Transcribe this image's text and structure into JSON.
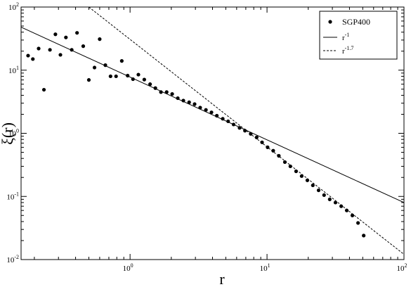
{
  "chart_data": {
    "type": "scatter",
    "title": "",
    "xlabel": "r",
    "ylabel": "ξ(r)",
    "xscale": "log",
    "yscale": "log",
    "xlim": [
      0.16,
      100
    ],
    "ylim": [
      0.01,
      100
    ],
    "grid": false,
    "legend_position": "top-right",
    "x_ticks": [
      {
        "base": "10",
        "exp": "0"
      },
      {
        "base": "10",
        "exp": "1"
      },
      {
        "base": "10",
        "exp": "2"
      }
    ],
    "y_ticks": [
      {
        "base": "10",
        "exp": "-2"
      },
      {
        "base": "10",
        "exp": "-1"
      },
      {
        "base": "10",
        "exp": "0"
      },
      {
        "base": "10",
        "exp": "1"
      },
      {
        "base": "10",
        "exp": "2"
      }
    ],
    "series": [
      {
        "name": "SGP400",
        "type": "scatter",
        "marker": "dot",
        "color": "#000000",
        "points": [
          [
            0.18,
            17
          ],
          [
            0.195,
            15
          ],
          [
            0.215,
            22
          ],
          [
            0.235,
            4.9
          ],
          [
            0.26,
            21
          ],
          [
            0.285,
            37
          ],
          [
            0.31,
            17.5
          ],
          [
            0.34,
            33
          ],
          [
            0.375,
            21
          ],
          [
            0.41,
            39
          ],
          [
            0.455,
            24
          ],
          [
            0.5,
            7
          ],
          [
            0.55,
            11
          ],
          [
            0.6,
            31
          ],
          [
            0.66,
            12
          ],
          [
            0.72,
            8
          ],
          [
            0.79,
            8
          ],
          [
            0.87,
            14
          ],
          [
            0.96,
            8.2
          ],
          [
            1.05,
            7.2
          ],
          [
            1.15,
            8.5
          ],
          [
            1.27,
            7.1
          ],
          [
            1.4,
            6
          ],
          [
            1.53,
            5.2
          ],
          [
            1.68,
            4.5
          ],
          [
            1.85,
            4.5
          ],
          [
            2.03,
            4.2
          ],
          [
            2.23,
            3.6
          ],
          [
            2.45,
            3.3
          ],
          [
            2.7,
            3.1
          ],
          [
            2.96,
            2.9
          ],
          [
            3.25,
            2.55
          ],
          [
            3.58,
            2.35
          ],
          [
            3.93,
            2.15
          ],
          [
            4.3,
            1.9
          ],
          [
            4.75,
            1.7
          ],
          [
            5.2,
            1.55
          ],
          [
            5.7,
            1.38
          ],
          [
            6.3,
            1.22
          ],
          [
            6.9,
            1.1
          ],
          [
            7.6,
            0.98
          ],
          [
            8.4,
            0.86
          ],
          [
            9.2,
            0.72
          ],
          [
            10.1,
            0.6
          ],
          [
            11.1,
            0.53
          ],
          [
            12.2,
            0.44
          ],
          [
            13.5,
            0.35
          ],
          [
            14.8,
            0.3
          ],
          [
            16.3,
            0.25
          ],
          [
            17.9,
            0.21
          ],
          [
            19.7,
            0.18
          ],
          [
            21.6,
            0.15
          ],
          [
            23.8,
            0.125
          ],
          [
            26.1,
            0.105
          ],
          [
            28.7,
            0.09
          ],
          [
            31.6,
            0.08
          ],
          [
            34.8,
            0.07
          ],
          [
            38.2,
            0.06
          ],
          [
            42,
            0.05
          ],
          [
            46.2,
            0.038
          ],
          [
            50.8,
            0.024
          ]
        ]
      },
      {
        "name": "r",
        "name_superscript": "-1",
        "type": "line",
        "style": "solid",
        "color": "#000000",
        "exponent": -1,
        "points": [
          [
            0.16,
            48
          ],
          [
            100,
            0.08
          ]
        ]
      },
      {
        "name": "r",
        "name_superscript": "-1.7",
        "type": "line",
        "style": "dashed",
        "color": "#000000",
        "exponent": -1.7,
        "points": [
          [
            0.5,
            100
          ],
          [
            100,
            0.0121
          ]
        ]
      }
    ]
  }
}
